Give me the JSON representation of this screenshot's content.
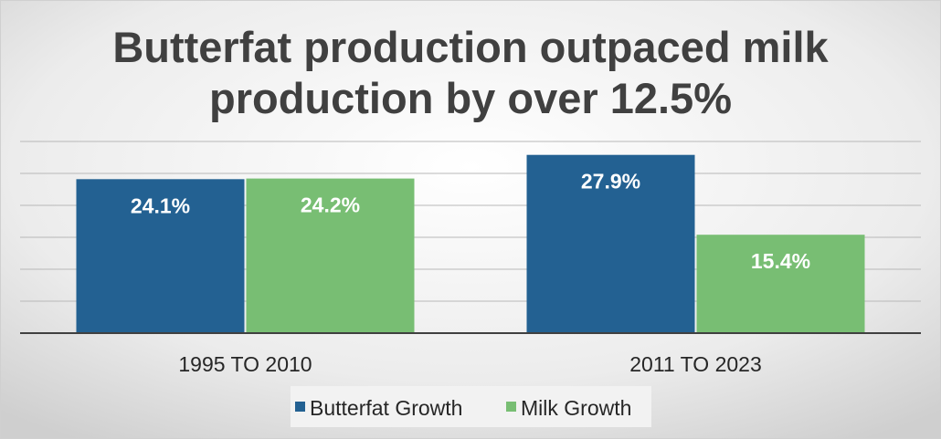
{
  "chart_data": {
    "type": "bar",
    "title": "Butterfat production outpaced milk production by over 12.5%",
    "title_lines": [
      "Butterfat production outpaced milk",
      "production by over 12.5%"
    ],
    "categories": [
      "1995 TO 2010",
      "2011 TO 2023"
    ],
    "series": [
      {
        "name": "Butterfat Growth",
        "values": [
          24.1,
          27.9
        ],
        "labels": [
          "24.1%",
          "27.9%"
        ],
        "color": "#236192"
      },
      {
        "name": "Milk Growth",
        "values": [
          24.2,
          15.4
        ],
        "labels": [
          "24.2%",
          "15.4%"
        ],
        "color": "#78be73"
      }
    ],
    "xlabel": "",
    "ylabel": "",
    "ylim": [
      0,
      30
    ],
    "y_gridline_step": 5,
    "grid": true,
    "legend_placement": "bottom",
    "colors": {
      "background_top": "#ffffff",
      "background_bottom": "#d8d8d8",
      "title": "#404040",
      "gridline": "#b8b8b8",
      "axis": "#404040",
      "data_label": "#ffffff",
      "tick_label": "#262626",
      "legend_box": "#f2f2f2"
    }
  }
}
